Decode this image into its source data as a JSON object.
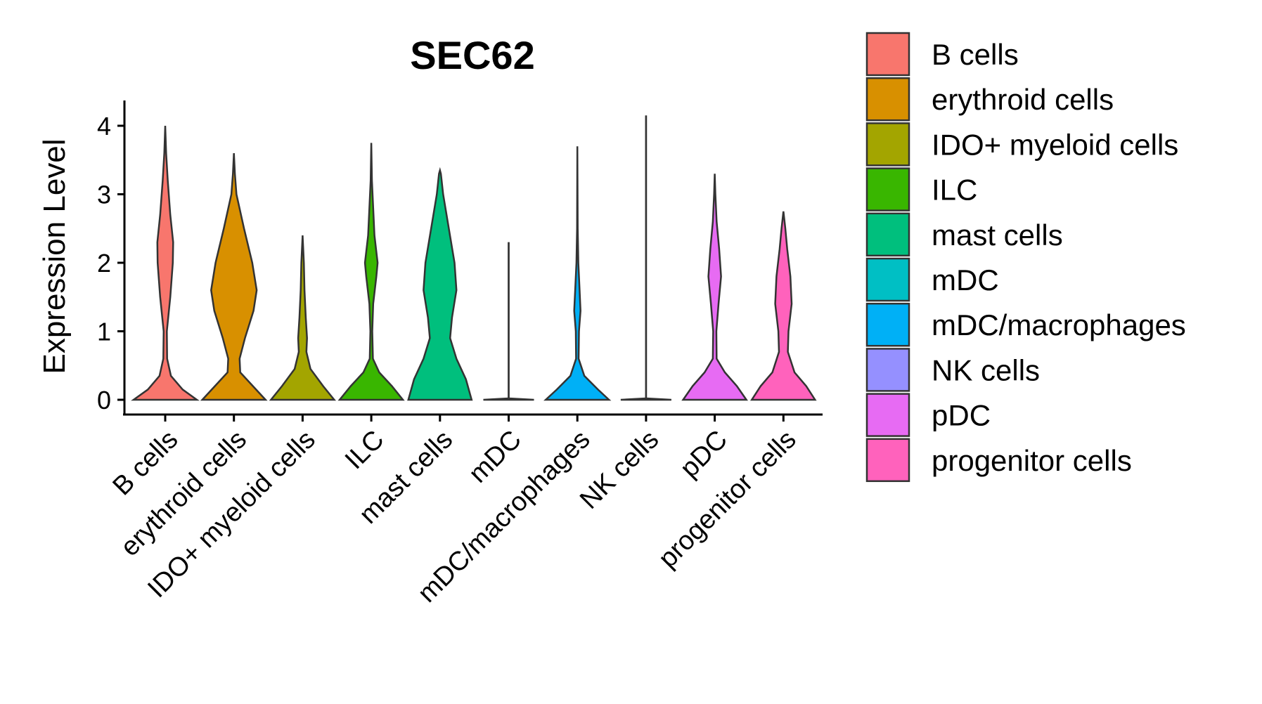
{
  "chart_data": {
    "type": "violin",
    "title": "SEC62",
    "xlabel": "",
    "ylabel": "Expression Level",
    "ylim": [
      0,
      4.3
    ],
    "yticks": [
      0,
      1,
      2,
      3,
      4
    ],
    "categories": [
      "B cells",
      "erythroid cells",
      "IDO+ myeloid cells",
      "ILC",
      "mast cells",
      "mDC",
      "mDC/macrophages",
      "NK cells",
      "pDC",
      "progenitor cells"
    ],
    "colors": [
      "#F8766D",
      "#D89000",
      "#A3A500",
      "#39B600",
      "#00BF7D",
      "#00BFC4",
      "#00B0F6",
      "#9590FF",
      "#E76BF3",
      "#FF62BC"
    ],
    "series": [
      {
        "name": "B cells",
        "max": 4.0,
        "profile": [
          [
            0,
            1.0
          ],
          [
            0.15,
            0.55
          ],
          [
            0.35,
            0.18
          ],
          [
            0.6,
            0.06
          ],
          [
            1.0,
            0.05
          ],
          [
            1.5,
            0.16
          ],
          [
            2.0,
            0.24
          ],
          [
            2.3,
            0.25
          ],
          [
            2.7,
            0.16
          ],
          [
            3.2,
            0.08
          ],
          [
            3.6,
            0.03
          ],
          [
            4.0,
            0.0
          ]
        ]
      },
      {
        "name": "erythroid cells",
        "max": 3.6,
        "profile": [
          [
            0,
            1.0
          ],
          [
            0.2,
            0.6
          ],
          [
            0.4,
            0.2
          ],
          [
            0.6,
            0.18
          ],
          [
            0.9,
            0.35
          ],
          [
            1.3,
            0.62
          ],
          [
            1.6,
            0.72
          ],
          [
            2.0,
            0.58
          ],
          [
            2.5,
            0.32
          ],
          [
            3.0,
            0.08
          ],
          [
            3.3,
            0.03
          ],
          [
            3.6,
            0.0
          ]
        ]
      },
      {
        "name": "IDO+ myeloid cells",
        "max": 2.4,
        "profile": [
          [
            0,
            1.0
          ],
          [
            0.2,
            0.65
          ],
          [
            0.45,
            0.25
          ],
          [
            0.7,
            0.12
          ],
          [
            0.9,
            0.14
          ],
          [
            1.2,
            0.1
          ],
          [
            1.6,
            0.06
          ],
          [
            2.0,
            0.04
          ],
          [
            2.4,
            0.0
          ]
        ]
      },
      {
        "name": "ILC",
        "max": 3.75,
        "profile": [
          [
            0,
            1.0
          ],
          [
            0.2,
            0.65
          ],
          [
            0.4,
            0.25
          ],
          [
            0.6,
            0.05
          ],
          [
            1.0,
            0.03
          ],
          [
            1.4,
            0.06
          ],
          [
            1.8,
            0.16
          ],
          [
            2.0,
            0.2
          ],
          [
            2.4,
            0.1
          ],
          [
            2.8,
            0.06
          ],
          [
            3.2,
            0.02
          ],
          [
            3.75,
            0.0
          ]
        ]
      },
      {
        "name": "mast cells",
        "max": 3.35,
        "profile": [
          [
            0,
            1.0
          ],
          [
            0.3,
            0.82
          ],
          [
            0.6,
            0.52
          ],
          [
            0.9,
            0.32
          ],
          [
            1.2,
            0.38
          ],
          [
            1.6,
            0.52
          ],
          [
            2.0,
            0.46
          ],
          [
            2.5,
            0.28
          ],
          [
            3.0,
            0.1
          ],
          [
            3.3,
            0.03
          ],
          [
            3.35,
            0.0
          ]
        ]
      },
      {
        "name": "mDC",
        "max": 2.3,
        "profile": [
          [
            0,
            0.8
          ],
          [
            0.02,
            0.0
          ],
          [
            2.3,
            0.0
          ]
        ]
      },
      {
        "name": "mDC/macrophages",
        "max": 3.7,
        "profile": [
          [
            0,
            1.0
          ],
          [
            0.15,
            0.65
          ],
          [
            0.35,
            0.22
          ],
          [
            0.6,
            0.04
          ],
          [
            1.0,
            0.05
          ],
          [
            1.3,
            0.1
          ],
          [
            1.6,
            0.07
          ],
          [
            2.0,
            0.03
          ],
          [
            2.5,
            0.01
          ],
          [
            3.7,
            0.0
          ]
        ]
      },
      {
        "name": "NK cells",
        "max": 4.15,
        "profile": [
          [
            0,
            0.8
          ],
          [
            0.02,
            0.0
          ],
          [
            4.15,
            0.0
          ]
        ]
      },
      {
        "name": "pDC",
        "max": 3.3,
        "profile": [
          [
            0,
            1.0
          ],
          [
            0.2,
            0.7
          ],
          [
            0.4,
            0.32
          ],
          [
            0.6,
            0.06
          ],
          [
            1.0,
            0.05
          ],
          [
            1.4,
            0.12
          ],
          [
            1.8,
            0.2
          ],
          [
            2.2,
            0.14
          ],
          [
            2.6,
            0.06
          ],
          [
            3.0,
            0.02
          ],
          [
            3.3,
            0.0
          ]
        ]
      },
      {
        "name": "progenitor cells",
        "max": 2.75,
        "profile": [
          [
            0,
            1.0
          ],
          [
            0.2,
            0.72
          ],
          [
            0.4,
            0.35
          ],
          [
            0.7,
            0.14
          ],
          [
            1.0,
            0.16
          ],
          [
            1.4,
            0.26
          ],
          [
            1.8,
            0.22
          ],
          [
            2.2,
            0.12
          ],
          [
            2.5,
            0.06
          ],
          [
            2.75,
            0.0
          ]
        ]
      }
    ],
    "legend_position": "right"
  }
}
